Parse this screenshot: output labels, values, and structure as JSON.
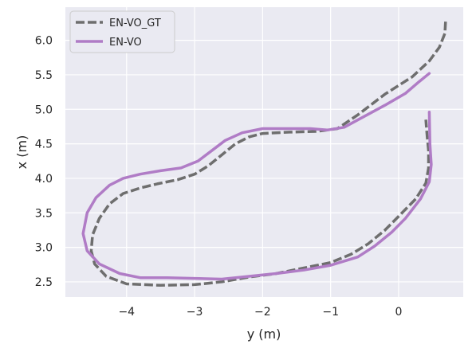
{
  "chart_data": {
    "type": "line",
    "title": "",
    "xlabel": "y (m)",
    "ylabel": "x (m)",
    "xlim": [
      -4.9,
      0.95
    ],
    "ylim": [
      2.28,
      6.48
    ],
    "xticks": [
      -4,
      -3,
      -2,
      -1,
      0
    ],
    "yticks": [
      2.5,
      3.0,
      3.5,
      4.0,
      4.5,
      5.0,
      5.5,
      6.0
    ],
    "xtick_labels": [
      "−4",
      "−3",
      "−2",
      "−1",
      "0"
    ],
    "ytick_labels": [
      "2.5",
      "3.0",
      "3.5",
      "4.0",
      "4.5",
      "5.0",
      "5.5",
      "6.0"
    ],
    "grid": true,
    "legend_position": "upper-left",
    "series": [
      {
        "name": "EN-VO_GT",
        "color": "#6e6e6e",
        "style": "dashed",
        "points": [
          [
            0.69,
            6.27
          ],
          [
            0.68,
            6.1
          ],
          [
            0.6,
            5.9
          ],
          [
            0.45,
            5.7
          ],
          [
            0.2,
            5.47
          ],
          [
            -0.2,
            5.22
          ],
          [
            -0.6,
            4.92
          ],
          [
            -0.9,
            4.72
          ],
          [
            -1.2,
            4.68
          ],
          [
            -1.6,
            4.67
          ],
          [
            -2.0,
            4.65
          ],
          [
            -2.2,
            4.6
          ],
          [
            -2.4,
            4.5
          ],
          [
            -2.6,
            4.34
          ],
          [
            -2.8,
            4.18
          ],
          [
            -3.0,
            4.06
          ],
          [
            -3.25,
            3.98
          ],
          [
            -3.55,
            3.92
          ],
          [
            -3.8,
            3.86
          ],
          [
            -4.05,
            3.78
          ],
          [
            -4.25,
            3.63
          ],
          [
            -4.4,
            3.42
          ],
          [
            -4.5,
            3.18
          ],
          [
            -4.52,
            2.95
          ],
          [
            -4.47,
            2.76
          ],
          [
            -4.3,
            2.58
          ],
          [
            -4.0,
            2.47
          ],
          [
            -3.5,
            2.45
          ],
          [
            -3.0,
            2.46
          ],
          [
            -2.6,
            2.5
          ],
          [
            -2.2,
            2.57
          ],
          [
            -1.8,
            2.62
          ],
          [
            -1.4,
            2.7
          ],
          [
            -1.0,
            2.78
          ],
          [
            -0.7,
            2.9
          ],
          [
            -0.45,
            3.05
          ],
          [
            -0.2,
            3.25
          ],
          [
            0.0,
            3.45
          ],
          [
            0.25,
            3.7
          ],
          [
            0.4,
            3.93
          ],
          [
            0.44,
            4.15
          ],
          [
            0.44,
            4.4
          ],
          [
            0.42,
            4.6
          ],
          [
            0.4,
            4.85
          ]
        ]
      },
      {
        "name": "EN-VO",
        "color": "#b07cc6",
        "style": "solid",
        "points": [
          [
            0.45,
            5.52
          ],
          [
            0.3,
            5.4
          ],
          [
            0.1,
            5.23
          ],
          [
            -0.2,
            5.06
          ],
          [
            -0.5,
            4.9
          ],
          [
            -0.8,
            4.74
          ],
          [
            -1.05,
            4.7
          ],
          [
            -1.3,
            4.72
          ],
          [
            -1.6,
            4.72
          ],
          [
            -2.0,
            4.72
          ],
          [
            -2.3,
            4.66
          ],
          [
            -2.55,
            4.55
          ],
          [
            -2.75,
            4.4
          ],
          [
            -2.95,
            4.25
          ],
          [
            -3.2,
            4.15
          ],
          [
            -3.5,
            4.11
          ],
          [
            -3.8,
            4.06
          ],
          [
            -4.05,
            4.0
          ],
          [
            -4.25,
            3.9
          ],
          [
            -4.45,
            3.72
          ],
          [
            -4.58,
            3.5
          ],
          [
            -4.64,
            3.2
          ],
          [
            -4.58,
            2.95
          ],
          [
            -4.4,
            2.76
          ],
          [
            -4.1,
            2.62
          ],
          [
            -3.8,
            2.56
          ],
          [
            -3.4,
            2.56
          ],
          [
            -3.0,
            2.55
          ],
          [
            -2.6,
            2.54
          ],
          [
            -2.2,
            2.58
          ],
          [
            -1.8,
            2.62
          ],
          [
            -1.4,
            2.67
          ],
          [
            -1.0,
            2.74
          ],
          [
            -0.6,
            2.86
          ],
          [
            -0.35,
            3.02
          ],
          [
            -0.1,
            3.22
          ],
          [
            0.1,
            3.42
          ],
          [
            0.32,
            3.7
          ],
          [
            0.45,
            3.95
          ],
          [
            0.48,
            4.2
          ],
          [
            0.46,
            4.5
          ],
          [
            0.45,
            4.96
          ]
        ]
      }
    ]
  }
}
